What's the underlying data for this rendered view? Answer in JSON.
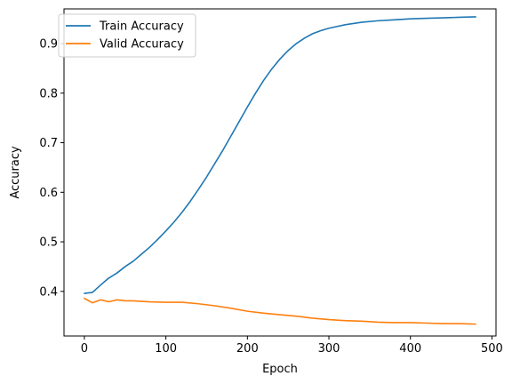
{
  "chart_data": {
    "type": "line",
    "xlabel": "Epoch",
    "ylabel": "Accuracy",
    "xlim": [
      -25,
      505
    ],
    "ylim": [
      0.31,
      0.97
    ],
    "xticks": [
      0,
      100,
      200,
      300,
      400,
      500
    ],
    "yticks": [
      0.4,
      0.5,
      0.6,
      0.7,
      0.8,
      0.9
    ],
    "grid": false,
    "legend_position": "top-left",
    "series": [
      {
        "name": "Train Accuracy",
        "color": "#1f77b4",
        "x": [
          0,
          10,
          20,
          30,
          40,
          50,
          60,
          70,
          80,
          90,
          100,
          110,
          120,
          130,
          140,
          150,
          160,
          170,
          180,
          190,
          200,
          210,
          220,
          230,
          240,
          250,
          260,
          270,
          280,
          290,
          300,
          320,
          340,
          360,
          380,
          400,
          420,
          440,
          460,
          480
        ],
        "y": [
          0.396,
          0.398,
          0.413,
          0.427,
          0.437,
          0.45,
          0.461,
          0.475,
          0.489,
          0.505,
          0.522,
          0.54,
          0.56,
          0.582,
          0.606,
          0.631,
          0.658,
          0.685,
          0.714,
          0.743,
          0.772,
          0.8,
          0.826,
          0.849,
          0.869,
          0.886,
          0.9,
          0.911,
          0.92,
          0.926,
          0.931,
          0.938,
          0.943,
          0.946,
          0.948,
          0.95,
          0.951,
          0.952,
          0.953,
          0.954
        ]
      },
      {
        "name": "Valid Accuracy",
        "color": "#ff7f0e",
        "x": [
          0,
          10,
          20,
          30,
          40,
          50,
          60,
          80,
          100,
          120,
          140,
          160,
          180,
          200,
          220,
          240,
          260,
          280,
          300,
          320,
          340,
          360,
          380,
          400,
          420,
          440,
          460,
          480
        ],
        "y": [
          0.386,
          0.377,
          0.383,
          0.379,
          0.383,
          0.381,
          0.381,
          0.379,
          0.378,
          0.378,
          0.375,
          0.371,
          0.366,
          0.36,
          0.356,
          0.353,
          0.35,
          0.346,
          0.343,
          0.341,
          0.34,
          0.338,
          0.337,
          0.337,
          0.336,
          0.335,
          0.335,
          0.334
        ]
      }
    ]
  }
}
